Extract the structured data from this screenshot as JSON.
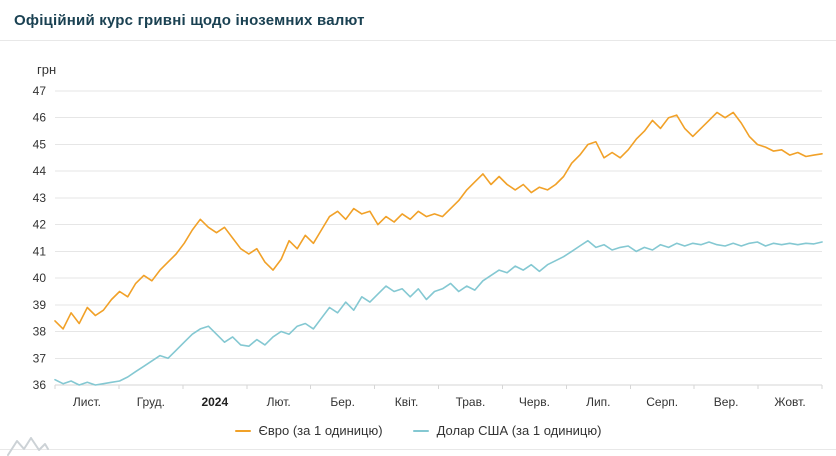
{
  "page": {
    "title": "Офіційний курс гривні щодо іноземних валют"
  },
  "theme": {
    "title_color": "#1a4152",
    "text_color": "#333333",
    "grid_color": "#e6e6e6",
    "axis_color": "#d6d6d6",
    "divider_color": "#e8e8e8",
    "background": "#ffffff",
    "logo_color": "#ccd2d6"
  },
  "chart_data": {
    "type": "line",
    "title": "Офіційний курс гривні щодо іноземних валют",
    "xlabel": "",
    "ylabel": "грн",
    "ylim": [
      36,
      47
    ],
    "y_ticks": [
      36,
      37,
      38,
      39,
      40,
      41,
      42,
      43,
      44,
      45,
      46,
      47
    ],
    "x_labels": [
      "Лист.",
      "Груд.",
      "2024",
      "Лют.",
      "Бер.",
      "Квіт.",
      "Трав.",
      "Черв.",
      "Лип.",
      "Серп.",
      "Вер.",
      "Жовт."
    ],
    "bold_x_label": "2024",
    "grid": true,
    "legend_position": "bottom",
    "series": [
      {
        "name": "Євро (за 1 одиницю)",
        "color": "#f1a128",
        "values": [
          38.4,
          38.1,
          38.7,
          38.3,
          38.9,
          38.6,
          38.8,
          39.2,
          39.5,
          39.3,
          39.8,
          40.1,
          39.9,
          40.3,
          40.6,
          40.9,
          41.3,
          41.8,
          42.2,
          41.9,
          41.7,
          41.9,
          41.5,
          41.1,
          40.9,
          41.1,
          40.6,
          40.3,
          40.7,
          41.4,
          41.1,
          41.6,
          41.3,
          41.8,
          42.3,
          42.5,
          42.2,
          42.6,
          42.4,
          42.5,
          42.0,
          42.3,
          42.1,
          42.4,
          42.2,
          42.5,
          42.3,
          42.4,
          42.3,
          42.6,
          42.9,
          43.3,
          43.6,
          43.9,
          43.5,
          43.8,
          43.5,
          43.3,
          43.5,
          43.2,
          43.4,
          43.3,
          43.5,
          43.8,
          44.3,
          44.6,
          45.0,
          45.1,
          44.5,
          44.7,
          44.5,
          44.8,
          45.2,
          45.5,
          45.9,
          45.6,
          46.0,
          46.1,
          45.6,
          45.3,
          45.6,
          45.9,
          46.2,
          46.0,
          46.2,
          45.8,
          45.3,
          45.0,
          44.9,
          44.75,
          44.8,
          44.6,
          44.7,
          44.55,
          44.6,
          44.65
        ]
      },
      {
        "name": "Долар США (за 1 одиницю)",
        "color": "#84c8d2",
        "values": [
          36.2,
          36.05,
          36.15,
          36.0,
          36.1,
          36.0,
          36.05,
          36.1,
          36.15,
          36.3,
          36.5,
          36.7,
          36.9,
          37.1,
          37.0,
          37.3,
          37.6,
          37.9,
          38.1,
          38.2,
          37.9,
          37.6,
          37.8,
          37.5,
          37.45,
          37.7,
          37.5,
          37.8,
          38.0,
          37.9,
          38.2,
          38.3,
          38.1,
          38.5,
          38.9,
          38.7,
          39.1,
          38.8,
          39.3,
          39.1,
          39.4,
          39.7,
          39.5,
          39.6,
          39.3,
          39.6,
          39.2,
          39.5,
          39.6,
          39.8,
          39.5,
          39.7,
          39.55,
          39.9,
          40.1,
          40.3,
          40.2,
          40.45,
          40.3,
          40.5,
          40.25,
          40.5,
          40.65,
          40.8,
          41.0,
          41.2,
          41.4,
          41.15,
          41.25,
          41.05,
          41.15,
          41.2,
          41.0,
          41.15,
          41.05,
          41.25,
          41.15,
          41.3,
          41.2,
          41.3,
          41.25,
          41.35,
          41.25,
          41.2,
          41.3,
          41.2,
          41.3,
          41.35,
          41.2,
          41.3,
          41.25,
          41.3,
          41.25,
          41.3,
          41.28,
          41.35
        ]
      }
    ]
  }
}
